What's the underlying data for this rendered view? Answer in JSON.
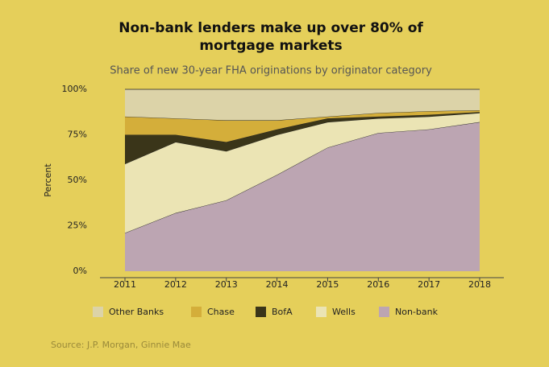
{
  "chart_data": {
    "type": "stacked-area",
    "title": "Non-bank lenders make up over 80% of mortgage markets",
    "subtitle": "Share of new 30-year FHA originations by originator category",
    "y_label": "Percent",
    "source": "Source: J.P. Morgan, Ginnie Mae",
    "categories": [
      "2011",
      "2012",
      "2013",
      "2014",
      "2015",
      "2016",
      "2017",
      "2018"
    ],
    "series": [
      {
        "name": "Non-bank",
        "color": "#bca5b2",
        "values": [
          21,
          32,
          39,
          53,
          68,
          76,
          78,
          82
        ]
      },
      {
        "name": "Wells",
        "color": "#ebe4b4",
        "values": [
          38,
          39,
          27,
          22,
          14,
          8,
          7,
          5
        ]
      },
      {
        "name": "BofA",
        "color": "#3a3519",
        "values": [
          16,
          4,
          5,
          3,
          2,
          1,
          1,
          0.5
        ]
      },
      {
        "name": "Chase",
        "color": "#d4ae3a",
        "values": [
          10,
          9,
          12,
          5,
          1,
          2,
          2,
          1
        ]
      },
      {
        "name": "Other Banks",
        "color": "#dcd3a8",
        "values": [
          15,
          16,
          17,
          17,
          15,
          13,
          12,
          11.5
        ]
      }
    ],
    "legend_order": [
      4,
      3,
      2,
      1,
      0
    ],
    "ylim": [
      0,
      100
    ],
    "yticks": [
      {
        "value": 0,
        "label": "0%"
      },
      {
        "value": 25,
        "label": "25%"
      },
      {
        "value": 50,
        "label": "50%"
      },
      {
        "value": 75,
        "label": "75%"
      },
      {
        "value": 100,
        "label": "100%"
      }
    ]
  }
}
